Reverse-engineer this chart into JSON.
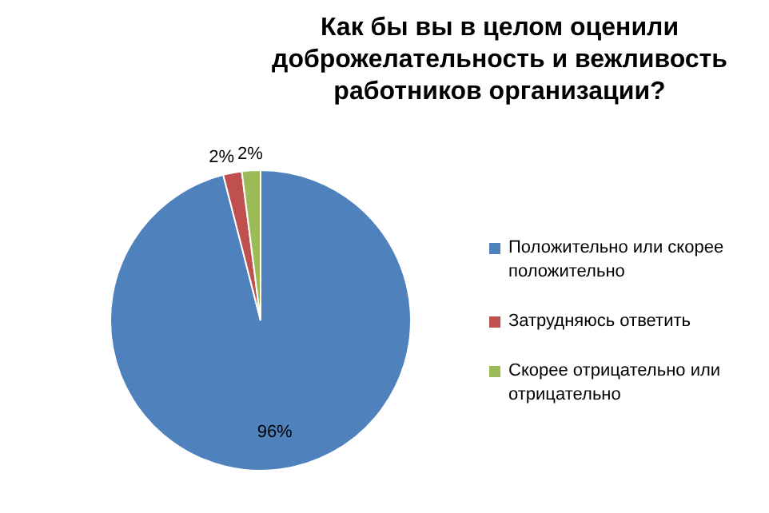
{
  "chart_data": {
    "type": "pie",
    "title": "Как бы вы в целом оценили доброжелательность и вежливость работников организации?",
    "categories": [
      "Положительно или скорее положительно",
      "Затрудняюсь ответить",
      "Скорее отрицательно или отрицательно"
    ],
    "values": [
      96,
      2,
      2
    ],
    "value_labels": [
      "96%",
      "2%",
      "2%"
    ],
    "colors": [
      "#4f81bd",
      "#c0504d",
      "#9bbb59"
    ],
    "legend": "right"
  }
}
